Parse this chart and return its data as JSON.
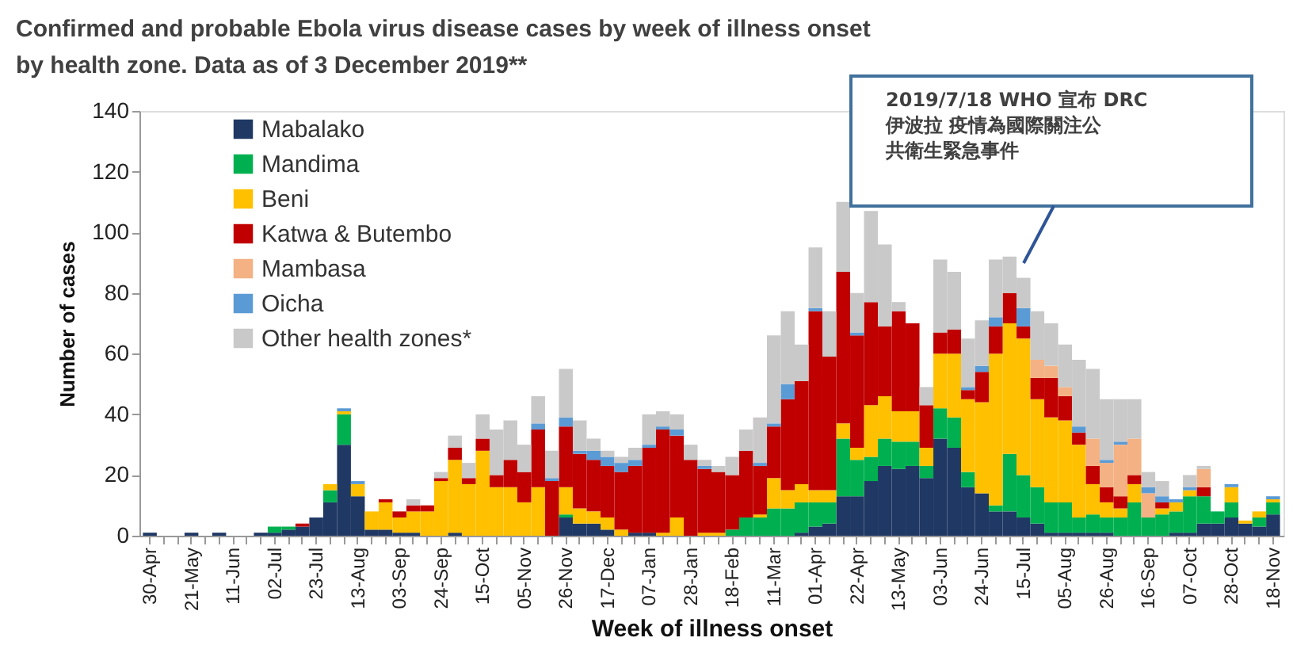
{
  "chart_data": {
    "type": "bar",
    "stacked": true,
    "title": "Confirmed and probable Ebola virus disease cases by week of illness onset by health zone. Data as of 3 December 2019**",
    "xlabel": "Week of illness onset",
    "ylabel": "Number of cases",
    "categories": [
      "30-Apr",
      null,
      null,
      "21-May",
      null,
      null,
      "11-Jun",
      null,
      null,
      "02-Jul",
      null,
      null,
      "23-Jul",
      null,
      null,
      "13-Aug",
      null,
      null,
      "03-Sep",
      null,
      null,
      "24-Sep",
      null,
      null,
      "15-Oct",
      null,
      null,
      "05-Nov",
      null,
      null,
      "26-Nov",
      null,
      null,
      "17-Dec",
      null,
      null,
      "07-Jan",
      null,
      null,
      "28-Jan",
      null,
      null,
      "18-Feb",
      null,
      null,
      "11-Mar",
      null,
      null,
      "01-Apr",
      null,
      null,
      "22-Apr",
      null,
      null,
      "13-May",
      null,
      null,
      "03-Jun",
      null,
      null,
      "24-Jun",
      null,
      null,
      "15-Jul",
      null,
      null,
      "05-Aug",
      null,
      null,
      "26-Aug",
      null,
      null,
      "16-Sep",
      null,
      null,
      "07-Oct",
      null,
      null,
      "28-Oct",
      null,
      null,
      "18-Nov"
    ],
    "series": [
      {
        "name": "Mabalako",
        "color": "#1f3864",
        "values": [
          1,
          null,
          null,
          1,
          null,
          1,
          null,
          null,
          1,
          1,
          2,
          3,
          6,
          11,
          30,
          13,
          2,
          2,
          1,
          1,
          null,
          null,
          1,
          null,
          null,
          null,
          null,
          null,
          null,
          null,
          6,
          4,
          4,
          2,
          null,
          1,
          1,
          null,
          null,
          null,
          null,
          null,
          null,
          null,
          null,
          null,
          null,
          1,
          3,
          4,
          13,
          13,
          18,
          23,
          22,
          23,
          19,
          32,
          29,
          16,
          14,
          8,
          8,
          6,
          4,
          1,
          1,
          1,
          1,
          1,
          null,
          null,
          null,
          null,
          1,
          1,
          4,
          4,
          6,
          4,
          3,
          7
        ]
      },
      {
        "name": "Mandima",
        "color": "#00b050",
        "values": [
          null,
          null,
          null,
          null,
          null,
          null,
          null,
          null,
          null,
          2,
          1,
          null,
          null,
          4,
          10,
          null,
          null,
          null,
          null,
          null,
          null,
          null,
          null,
          null,
          null,
          null,
          null,
          null,
          null,
          null,
          1,
          null,
          null,
          null,
          null,
          null,
          null,
          null,
          null,
          null,
          null,
          null,
          2,
          6,
          6,
          9,
          9,
          10,
          8,
          7,
          19,
          12,
          8,
          9,
          9,
          8,
          4,
          10,
          10,
          5,
          null,
          2,
          19,
          14,
          12,
          10,
          10,
          5,
          6,
          5,
          6,
          11,
          6,
          7,
          7,
          12,
          9,
          4,
          5,
          null,
          3,
          4
        ]
      },
      {
        "name": "Beni",
        "color": "#ffc000",
        "values": [
          null,
          null,
          null,
          null,
          null,
          null,
          null,
          null,
          null,
          null,
          null,
          null,
          null,
          2,
          1,
          4,
          6,
          9,
          5,
          7,
          8,
          18,
          24,
          17,
          28,
          16,
          16,
          11,
          16,
          null,
          9,
          5,
          4,
          4,
          2,
          null,
          null,
          1,
          6,
          null,
          1,
          1,
          null,
          null,
          1,
          10,
          6,
          6,
          4,
          4,
          5,
          4,
          17,
          14,
          10,
          10,
          6,
          18,
          21,
          24,
          30,
          50,
          43,
          45,
          29,
          28,
          27,
          24,
          10,
          5,
          3,
          6,
          null,
          2,
          3,
          2,
          null,
          null,
          5,
          1,
          2,
          1
        ]
      },
      {
        "name": "Katwa & Butembo",
        "color": "#c00000",
        "values": [
          null,
          null,
          null,
          null,
          null,
          null,
          null,
          null,
          null,
          null,
          null,
          1,
          null,
          null,
          null,
          null,
          null,
          1,
          2,
          2,
          2,
          1,
          4,
          2,
          4,
          4,
          9,
          10,
          19,
          18,
          20,
          18,
          17,
          17,
          19,
          22,
          28,
          34,
          27,
          25,
          21,
          20,
          18,
          22,
          16,
          17,
          30,
          34,
          59,
          44,
          50,
          37,
          34,
          23,
          33,
          29,
          14,
          7,
          8,
          3,
          10,
          9,
          10,
          4,
          7,
          13,
          8,
          4,
          6,
          5,
          4,
          3,
          null,
          2,
          null,
          null,
          3,
          null,
          null,
          null,
          null,
          null
        ]
      },
      {
        "name": "Mambasa",
        "color": "#f4b183",
        "values": [
          null,
          null,
          null,
          null,
          null,
          null,
          null,
          null,
          null,
          null,
          null,
          null,
          null,
          null,
          null,
          null,
          null,
          null,
          null,
          null,
          null,
          null,
          null,
          null,
          null,
          null,
          null,
          null,
          null,
          null,
          null,
          null,
          null,
          null,
          null,
          null,
          null,
          null,
          null,
          null,
          null,
          null,
          null,
          null,
          null,
          null,
          null,
          null,
          null,
          null,
          null,
          null,
          null,
          null,
          null,
          null,
          null,
          null,
          null,
          null,
          null,
          null,
          null,
          null,
          6,
          4,
          3,
          null,
          9,
          8,
          17,
          12,
          8,
          null,
          null,
          null,
          6,
          null,
          null,
          null,
          null,
          null
        ]
      },
      {
        "name": "Oicha",
        "color": "#5b9bd5",
        "values": [
          null,
          null,
          null,
          null,
          null,
          null,
          null,
          null,
          null,
          null,
          null,
          null,
          null,
          null,
          1,
          1,
          null,
          null,
          null,
          null,
          null,
          null,
          null,
          null,
          null,
          null,
          null,
          null,
          2,
          1,
          3,
          1,
          3,
          3,
          3,
          2,
          1,
          1,
          2,
          null,
          1,
          null,
          null,
          null,
          1,
          1,
          5,
          null,
          1,
          null,
          null,
          1,
          null,
          null,
          null,
          null,
          null,
          null,
          null,
          1,
          2,
          3,
          null,
          6,
          null,
          null,
          null,
          2,
          null,
          1,
          1,
          null,
          2,
          2,
          1,
          1,
          null,
          null,
          1,
          null,
          null,
          1
        ]
      },
      {
        "name": "Other health zones*",
        "color": "#c9c9c9",
        "values": [
          null,
          null,
          null,
          null,
          null,
          null,
          null,
          null,
          null,
          null,
          null,
          null,
          null,
          null,
          null,
          null,
          null,
          null,
          null,
          2,
          null,
          2,
          4,
          5,
          8,
          15,
          13,
          9,
          9,
          9,
          16,
          10,
          4,
          2,
          2,
          4,
          10,
          5,
          5,
          5,
          2,
          2,
          6,
          7,
          15,
          29,
          24,
          12,
          20,
          15,
          23,
          13,
          30,
          27,
          3,
          null,
          6,
          24,
          19,
          16,
          15,
          19,
          12,
          10,
          16,
          14,
          14,
          22,
          23,
          20,
          14,
          13,
          5,
          5,
          null,
          4,
          1,
          null,
          null,
          null,
          null,
          null
        ]
      }
    ],
    "ylim": [
      0,
      140
    ],
    "yticks": [
      0,
      20,
      40,
      60,
      80,
      100,
      120,
      140
    ],
    "grid": false,
    "legend": "top left",
    "annotations": [
      "2019/7/18 WHO 宣布 DRC 伊波拉 疫情為國際關注公共衛生緊急事件"
    ]
  }
}
